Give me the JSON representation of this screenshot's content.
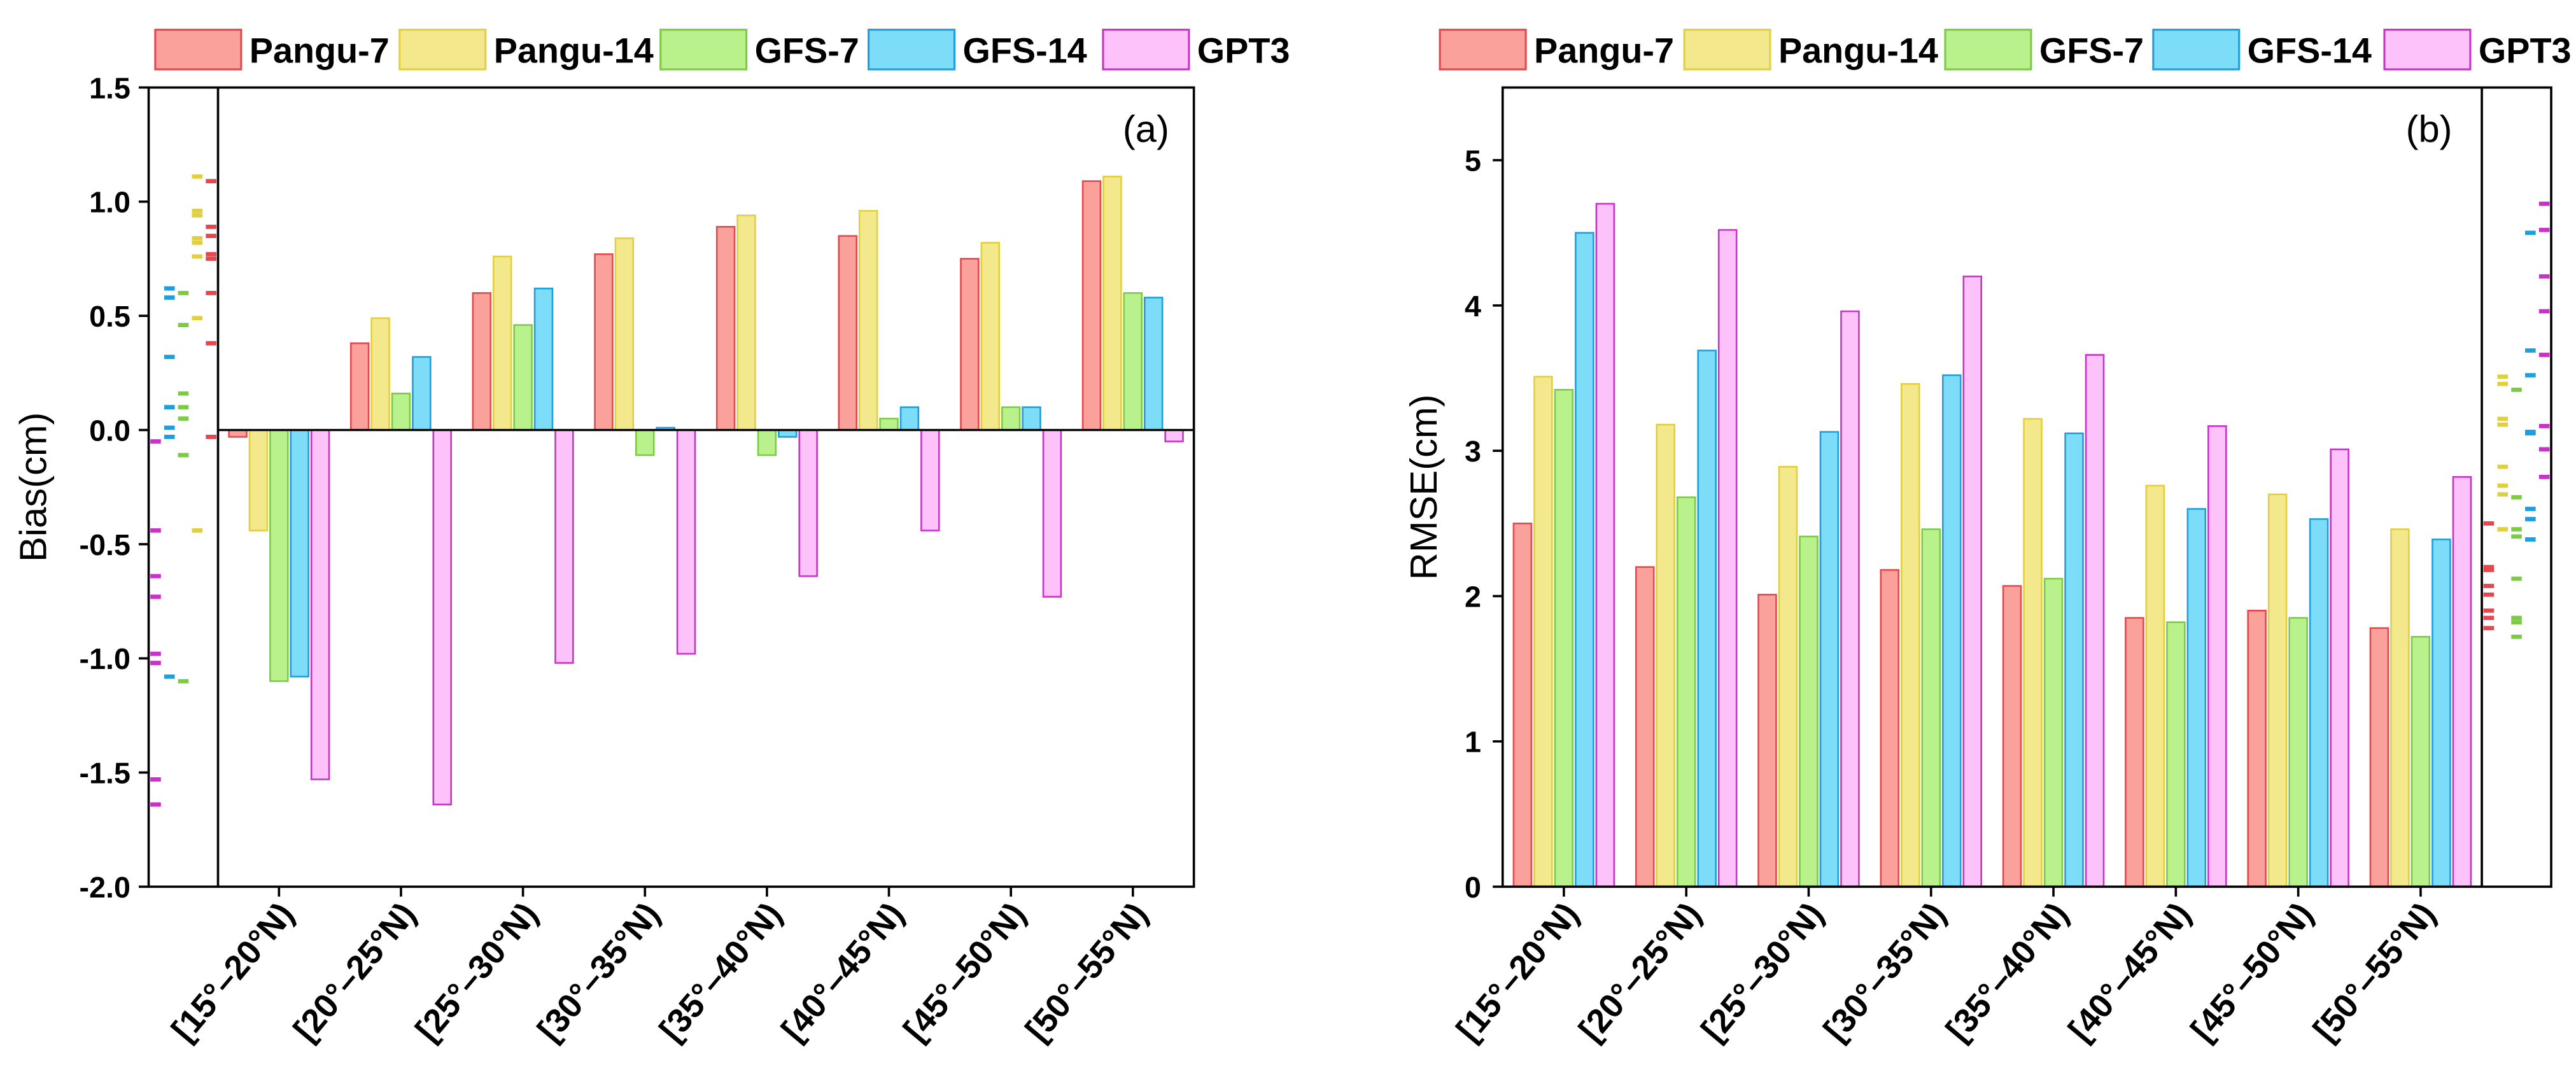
{
  "chart_data": [
    {
      "type": "bar",
      "panel_label": "(a)",
      "ylabel": "Bias(cm)",
      "ylim": [
        -2.0,
        1.5
      ],
      "yticks": [
        1.5,
        1.0,
        0.5,
        0.0,
        -0.5,
        -1.0,
        -1.5,
        -2.0
      ],
      "ytick_labels": [
        "1.5",
        "1.0",
        "0.5",
        "0.0",
        "-0.5",
        "-1.0",
        "-1.5",
        "-2.0"
      ],
      "legend": "top",
      "categories": [
        "[15°–20°N)",
        "[20°–25°N)",
        "[25°–30°N)",
        "[30°–35°N)",
        "[35°–40°N)",
        "[40°–45°N)",
        "[45°–50°N)",
        "[50°–55°N)"
      ],
      "series": [
        {
          "name": "Pangu-7",
          "fill": "#F9A19A",
          "stroke": "#E4484E",
          "values": [
            -0.03,
            0.38,
            0.6,
            0.77,
            0.89,
            0.85,
            0.75,
            1.09
          ]
        },
        {
          "name": "Pangu-14",
          "fill": "#F3E98C",
          "stroke": "#E2CF40",
          "values": [
            -0.44,
            0.49,
            0.76,
            0.84,
            0.94,
            0.96,
            0.82,
            1.11
          ]
        },
        {
          "name": "GFS-7",
          "fill": "#B9F18C",
          "stroke": "#7CCB45",
          "values": [
            -1.1,
            0.16,
            0.46,
            -0.11,
            -0.11,
            0.05,
            0.1,
            0.6
          ]
        },
        {
          "name": "GFS-14",
          "fill": "#7DDDF9",
          "stroke": "#1E9FDB",
          "values": [
            -1.08,
            0.32,
            0.62,
            0.01,
            -0.03,
            0.1,
            0.1,
            0.58
          ]
        },
        {
          "name": "GPT3",
          "fill": "#FEC2FA",
          "stroke": "#C832C8",
          "values": [
            -1.53,
            -1.64,
            -1.02,
            -0.98,
            -0.64,
            -0.44,
            -0.73,
            -0.05
          ]
        }
      ]
    },
    {
      "type": "bar",
      "panel_label": "(b)",
      "ylabel": "RMSE(cm)",
      "ylim": [
        0,
        5.5
      ],
      "yticks": [
        0,
        1,
        2,
        3,
        4,
        5
      ],
      "ytick_labels": [
        "0",
        "1",
        "2",
        "3",
        "4",
        "5"
      ],
      "legend": "top",
      "categories": [
        "[15°–20°N)",
        "[20°–25°N)",
        "[25°–30°N)",
        "[30°–35°N)",
        "[35°–40°N)",
        "[40°–45°N)",
        "[45°–50°N)",
        "[50°–55°N)"
      ],
      "series": [
        {
          "name": "Pangu-7",
          "fill": "#F9A19A",
          "stroke": "#E4484E",
          "values": [
            2.5,
            2.2,
            2.01,
            2.18,
            2.07,
            1.85,
            1.9,
            1.78
          ]
        },
        {
          "name": "Pangu-14",
          "fill": "#F3E98C",
          "stroke": "#E2CF40",
          "values": [
            3.51,
            3.18,
            2.89,
            3.46,
            3.22,
            2.76,
            2.7,
            2.46
          ]
        },
        {
          "name": "GFS-7",
          "fill": "#B9F18C",
          "stroke": "#7CCB45",
          "values": [
            3.42,
            2.68,
            2.41,
            2.46,
            2.12,
            1.82,
            1.85,
            1.72
          ]
        },
        {
          "name": "GFS-14",
          "fill": "#7DDDF9",
          "stroke": "#1E9FDB",
          "values": [
            4.5,
            3.69,
            3.13,
            3.52,
            3.12,
            2.6,
            2.53,
            2.39
          ]
        },
        {
          "name": "GPT3",
          "fill": "#FEC2FA",
          "stroke": "#C832C8",
          "values": [
            4.7,
            4.52,
            3.96,
            4.2,
            3.66,
            3.17,
            3.01,
            2.82
          ]
        }
      ]
    }
  ]
}
